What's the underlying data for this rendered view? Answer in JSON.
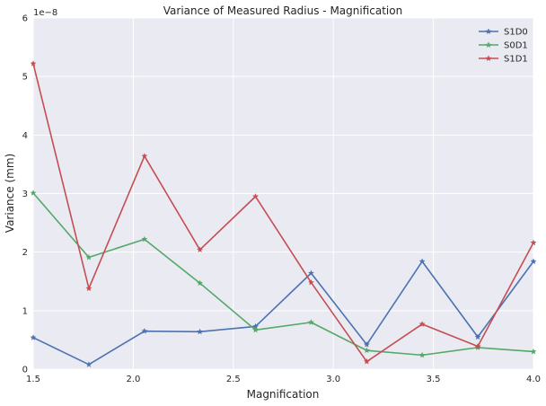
{
  "chart_data": {
    "type": "line",
    "title": "Variance of Measured Radius - Magnification",
    "xlabel": "Magnification",
    "ylabel": "Variance (mm)",
    "y_scale_label": "1e−8",
    "xlim": [
      1.5,
      4.0
    ],
    "ylim": [
      0,
      6
    ],
    "xticks": [
      1.5,
      2.0,
      2.5,
      3.0,
      3.5,
      4.0
    ],
    "xtick_labels": [
      "1.5",
      "2.0",
      "2.5",
      "3.0",
      "3.5",
      "4.0"
    ],
    "yticks": [
      0,
      1,
      2,
      3,
      4,
      5,
      6
    ],
    "ytick_labels": [
      "0",
      "1",
      "2",
      "3",
      "4",
      "5",
      "6"
    ],
    "grid": true,
    "legend_position": "top-right",
    "x": [
      1.5,
      1.778,
      2.056,
      2.333,
      2.611,
      2.889,
      3.167,
      3.444,
      3.722,
      4.0
    ],
    "series": [
      {
        "name": "S1D0",
        "color": "#4c72b0",
        "marker": "star",
        "values": [
          0.54,
          0.08,
          0.65,
          0.64,
          0.73,
          1.64,
          0.42,
          1.84,
          0.55,
          1.84
        ]
      },
      {
        "name": "S0D1",
        "color": "#55a868",
        "marker": "star",
        "values": [
          3.01,
          1.91,
          2.22,
          1.47,
          0.67,
          0.8,
          0.32,
          0.24,
          0.37,
          0.3
        ]
      },
      {
        "name": "S1D1",
        "color": "#c44e52",
        "marker": "star",
        "values": [
          5.22,
          1.38,
          3.64,
          2.04,
          2.95,
          1.48,
          0.13,
          0.77,
          0.39,
          2.16
        ]
      }
    ]
  }
}
